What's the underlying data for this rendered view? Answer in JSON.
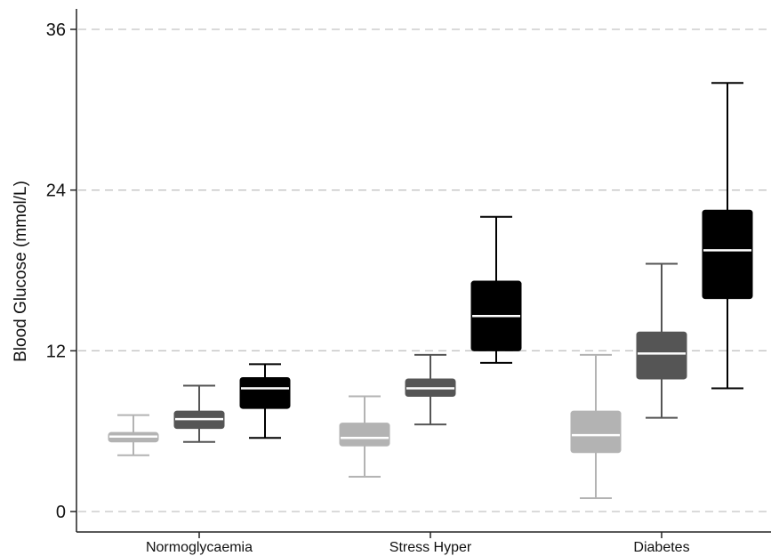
{
  "chart_data": {
    "type": "box",
    "ylabel": "Blood Glucose (mmol/L)",
    "xlabel": "",
    "ylim": [
      0,
      36
    ],
    "yticks": [
      0,
      12,
      24,
      36
    ],
    "ytick_labels": [
      "0",
      "12",
      "24",
      "36"
    ],
    "grid": "horizontal dashed",
    "legend": "none",
    "categories": [
      "Normoglycaemia",
      "Stress Hyper",
      "Diabetes"
    ],
    "series": [
      {
        "color": "#b3b3b3",
        "boxes": [
          {
            "whisker_low": 4.2,
            "q1": 5.2,
            "median": 5.6,
            "q3": 5.9,
            "whisker_high": 7.2
          },
          {
            "whisker_low": 2.6,
            "q1": 4.9,
            "median": 5.5,
            "q3": 6.6,
            "whisker_high": 8.6
          },
          {
            "whisker_low": 1.0,
            "q1": 4.4,
            "median": 5.7,
            "q3": 7.5,
            "whisker_high": 11.7
          }
        ]
      },
      {
        "color": "#555555",
        "boxes": [
          {
            "whisker_low": 5.2,
            "q1": 6.2,
            "median": 6.9,
            "q3": 7.5,
            "whisker_high": 9.4
          },
          {
            "whisker_low": 6.5,
            "q1": 8.6,
            "median": 9.2,
            "q3": 9.9,
            "whisker_high": 11.7
          },
          {
            "whisker_low": 7.0,
            "q1": 9.9,
            "median": 11.8,
            "q3": 13.4,
            "whisker_high": 18.5
          }
        ]
      },
      {
        "color": "#000000",
        "boxes": [
          {
            "whisker_low": 5.5,
            "q1": 7.7,
            "median": 9.2,
            "q3": 10.0,
            "whisker_high": 11.0
          },
          {
            "whisker_low": 11.1,
            "q1": 12.0,
            "median": 14.6,
            "q3": 17.2,
            "whisker_high": 22.0
          },
          {
            "whisker_low": 9.2,
            "q1": 15.9,
            "median": 19.5,
            "q3": 22.5,
            "whisker_high": 32.0
          }
        ]
      }
    ],
    "median_line_color": "#ffffff"
  }
}
